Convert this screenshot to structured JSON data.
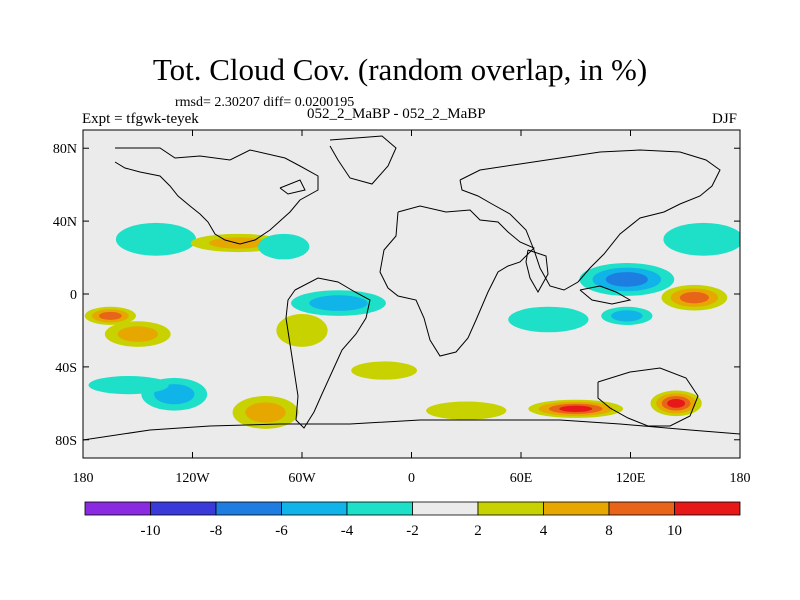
{
  "chart_data": {
    "type": "heatmap",
    "title": "Tot. Cloud Cov. (random overlap, in %)",
    "stats_line": "rmsd= 2.30207 diff= 0.0200195",
    "left_label": "Expt = tfgwk-teyek",
    "center_label": "052_2_MaBP - 052_2_MaBP",
    "right_label": "DJF",
    "xlim": [
      -180,
      180
    ],
    "ylim": [
      -90,
      90
    ],
    "x_ticks": [
      {
        "value": -180,
        "label": "180"
      },
      {
        "value": -120,
        "label": "120W"
      },
      {
        "value": -60,
        "label": "60W"
      },
      {
        "value": 0,
        "label": "0"
      },
      {
        "value": 60,
        "label": "60E"
      },
      {
        "value": 120,
        "label": "120E"
      },
      {
        "value": 180,
        "label": "180"
      }
    ],
    "y_ticks": [
      {
        "value": 80,
        "label": "80N"
      },
      {
        "value": 40,
        "label": "40N"
      },
      {
        "value": 0,
        "label": "0"
      },
      {
        "value": -40,
        "label": "40S"
      },
      {
        "value": -80,
        "label": "80S"
      }
    ],
    "colorbar": {
      "colors": [
        "#8a2be2",
        "#3a3adb",
        "#1e7de0",
        "#10b4e8",
        "#1ee0c8",
        "#ebebeb",
        "#c8d200",
        "#e6a800",
        "#e86418",
        "#e61818"
      ],
      "labels": [
        "-10",
        "-8",
        "-6",
        "-4",
        "-2",
        "2",
        "4",
        "8",
        "10"
      ]
    },
    "anomalies": [
      {
        "lon": -165,
        "lat": -12,
        "value": 8
      },
      {
        "lon": -150,
        "lat": -22,
        "value": 4
      },
      {
        "lon": -140,
        "lat": 30,
        "value": -2
      },
      {
        "lon": -95,
        "lat": 28,
        "value": 4
      },
      {
        "lon": -70,
        "lat": 26,
        "value": -2
      },
      {
        "lon": -130,
        "lat": -55,
        "value": -4
      },
      {
        "lon": -155,
        "lat": -50,
        "value": -2
      },
      {
        "lon": -40,
        "lat": -5,
        "value": -4
      },
      {
        "lon": -60,
        "lat": -20,
        "value": 2
      },
      {
        "lon": -15,
        "lat": -42,
        "value": 2
      },
      {
        "lon": 75,
        "lat": -14,
        "value": -2
      },
      {
        "lon": 118,
        "lat": 8,
        "value": -6
      },
      {
        "lon": 118,
        "lat": -12,
        "value": -4
      },
      {
        "lon": 155,
        "lat": -2,
        "value": 8
      },
      {
        "lon": 160,
        "lat": 30,
        "value": -2
      },
      {
        "lon": 90,
        "lat": -63,
        "value": 10
      },
      {
        "lon": 145,
        "lat": -60,
        "value": 10
      },
      {
        "lon": -80,
        "lat": -65,
        "value": 4
      },
      {
        "lon": 30,
        "lat": -64,
        "value": 2
      }
    ]
  }
}
